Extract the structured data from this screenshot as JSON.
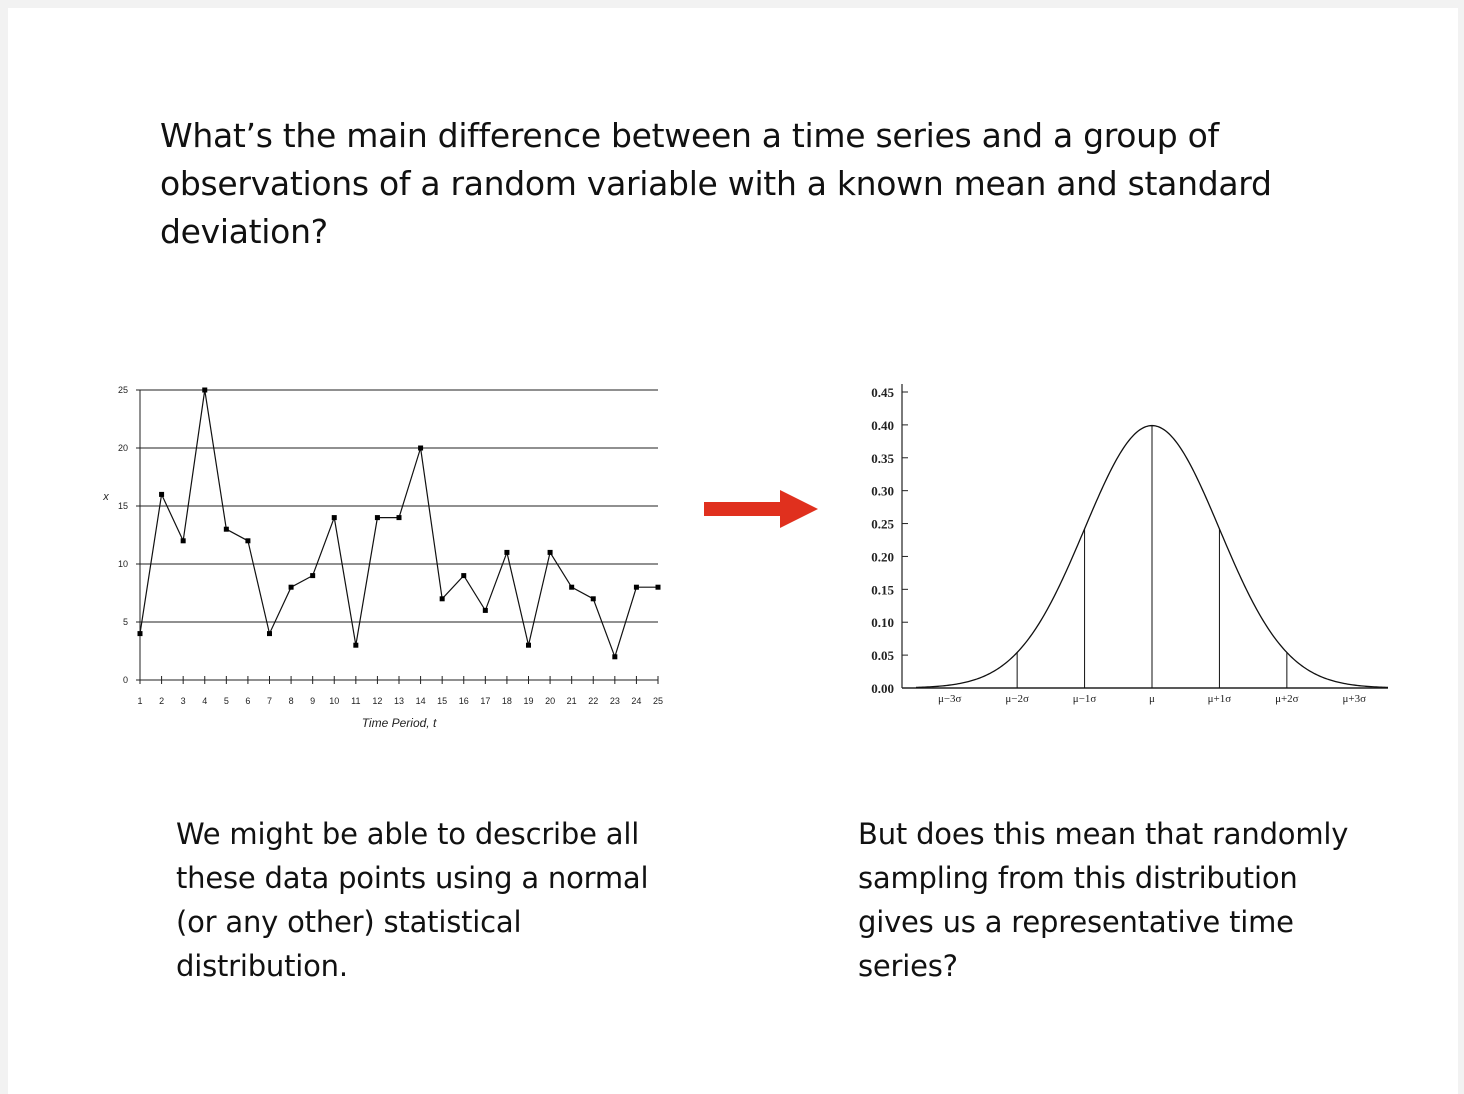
{
  "slide": {
    "question_lines": [
      "What’s the main difference between a time series and a group of",
      "observations of a random variable with a known mean and standard",
      "deviation?"
    ],
    "left_caption_lines": [
      "We might be able to describe all",
      "these data points using a normal",
      "(or any other) statistical",
      "distribution."
    ],
    "right_caption_lines": [
      "But does this mean that randomly",
      "sampling from this distribution",
      "gives us a representative time",
      "series?"
    ],
    "arrow_color": "#e0301e"
  },
  "chart_data": [
    {
      "type": "line",
      "xlabel": "Time Period, t",
      "ylabel": "x",
      "x": [
        1,
        2,
        3,
        4,
        5,
        6,
        7,
        8,
        9,
        10,
        11,
        12,
        13,
        14,
        15,
        16,
        17,
        18,
        19,
        20,
        21,
        22,
        23,
        24,
        25
      ],
      "y": [
        4,
        16,
        12,
        25,
        13,
        12,
        4,
        8,
        9,
        14,
        3,
        14,
        14,
        20,
        7,
        9,
        6,
        11,
        3,
        11,
        8,
        7,
        2,
        8,
        8
      ],
      "xticks": [
        "1",
        "2",
        "3",
        "4",
        "5",
        "6",
        "7",
        "8",
        "9",
        "10",
        "11",
        "12",
        "13",
        "14",
        "15",
        "16",
        "17",
        "18",
        "19",
        "20",
        "21",
        "22",
        "23",
        "24",
        "25"
      ],
      "yticks": [
        "0",
        "5",
        "10",
        "15",
        "20",
        "25"
      ],
      "ylim": [
        0,
        25
      ],
      "grid": "horizontal"
    },
    {
      "type": "area",
      "curve": "normal-pdf",
      "yticks": [
        "0.00",
        "0.05",
        "0.10",
        "0.15",
        "0.20",
        "0.25",
        "0.30",
        "0.35",
        "0.40",
        "0.45"
      ],
      "xticks": [
        "μ−3σ",
        "μ−2σ",
        "μ−1σ",
        "μ",
        "μ+1σ",
        "μ+2σ",
        "μ+3σ"
      ],
      "x_sigma": [
        -3,
        -2,
        -1,
        0,
        1,
        2,
        3
      ],
      "ylim": [
        0,
        0.45
      ],
      "xlim_sigma": [
        -3.5,
        3.5
      ],
      "vertical_lines_at_sigma": [
        -2,
        -1,
        0,
        1,
        2
      ],
      "grid": false
    }
  ]
}
